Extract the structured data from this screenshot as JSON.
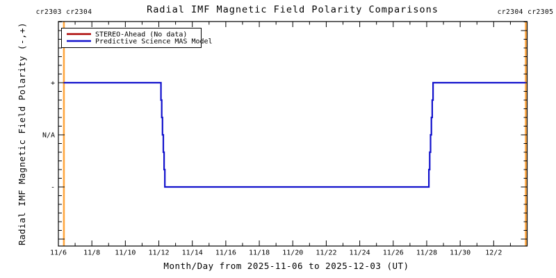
{
  "title": "Radial IMF Magnetic Field Polarity Comparisons",
  "cr_labels": {
    "left": "cr2303 cr2304",
    "right": "cr2304 cr2305"
  },
  "legend": {
    "items": [
      {
        "label": "STEREO-Ahead (No data)",
        "color": "#aa0000"
      },
      {
        "label": "Predictive Science MAS Model",
        "color": "#1111cc"
      }
    ]
  },
  "axes": {
    "ylabel": "Radial IMF Magnetic Field Polarity (-,+)",
    "xlabel": "Month/Day from 2025-11-06 to 2025-12-03 (UT)",
    "y_tick_labels": [
      "+",
      "N/A",
      "-"
    ],
    "x_tick_labels": [
      "11/6",
      "11/8",
      "11/10",
      "11/12",
      "11/14",
      "11/16",
      "11/18",
      "11/20",
      "11/22",
      "11/24",
      "11/26",
      "11/28",
      "11/30",
      "12/2"
    ]
  },
  "chart_data": {
    "type": "line",
    "title": "Radial IMF Magnetic Field Polarity Comparisons",
    "xlabel": "Month/Day from 2025-11-06 to 2025-12-03 (UT)",
    "ylabel": "Radial IMF Magnetic Field Polarity (-,+)",
    "x_unit": "days since 2025-11-06 00:00 UT",
    "x_range_days": [
      0,
      28
    ],
    "x_major_tick_days": [
      0,
      2,
      4,
      6,
      8,
      10,
      12,
      14,
      16,
      18,
      20,
      22,
      24,
      26
    ],
    "y_levels": [
      {
        "value": 1,
        "label": "+"
      },
      {
        "value": 0,
        "label": "N/A"
      },
      {
        "value": -1,
        "label": "-"
      }
    ],
    "series": [
      {
        "name": "STEREO-Ahead (No data)",
        "color": "#aa0000",
        "points": []
      },
      {
        "name": "Predictive Science MAS Model",
        "color": "#1111cc",
        "points": [
          [
            0.33,
            1
          ],
          [
            6.08,
            1
          ],
          [
            6.36,
            -1
          ],
          [
            22.08,
            -1
          ],
          [
            22.38,
            1
          ],
          [
            27.92,
            1
          ]
        ],
        "transition_substeps": 6
      }
    ],
    "cr_boundaries": [
      {
        "day": 0.33,
        "label_before": "cr2303",
        "label_after": "cr2304"
      },
      {
        "day": 27.92,
        "label_before": "cr2304",
        "label_after": "cr2305"
      }
    ],
    "cr_boundary_color": "#ffa63e",
    "legend_position": "top-left-inside",
    "grid": false
  }
}
